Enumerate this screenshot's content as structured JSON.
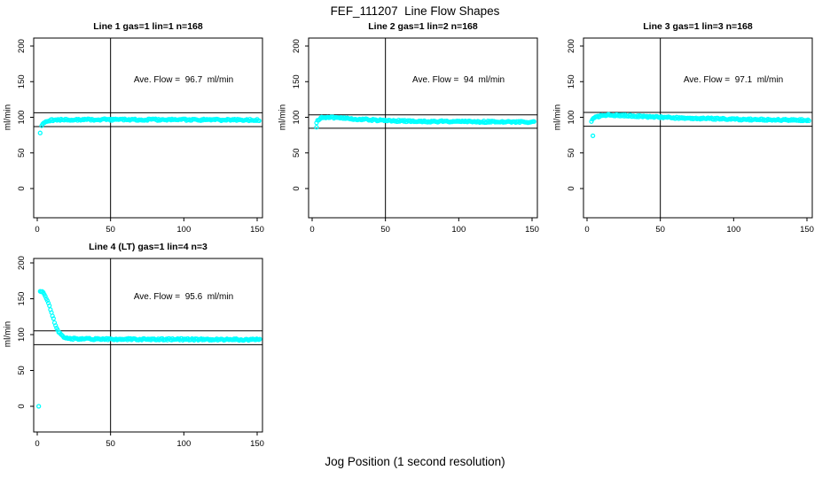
{
  "figure": {
    "title": "FEF_111207  Line Flow Shapes",
    "xlabel": "Jog Position (1 second resolution)",
    "ylabel": "ml/min",
    "point_color": "#00FFFF",
    "axis_color": "#000000",
    "background_color": "#FFFFFF"
  },
  "chart_data": [
    {
      "type": "scatter",
      "title": "Line 1 gas=1 lin=1 n=168",
      "annotation": "Ave. Flow =  96.7  ml/min",
      "ave_flow": 96.7,
      "n": 168,
      "xticks": [
        0,
        50,
        100,
        150
      ],
      "yticks": [
        0,
        50,
        100,
        150,
        200
      ],
      "xlim": [
        -3,
        154
      ],
      "ylim": [
        -40,
        210
      ],
      "vline_x": 50,
      "hlines": [
        106.4,
        87.0
      ],
      "outlier_points": [
        [
          2,
          78
        ]
      ],
      "band_points": [
        [
          3,
          88
        ],
        [
          4,
          91.5
        ],
        [
          5,
          93.5
        ],
        [
          6,
          94.5
        ],
        [
          8,
          95.5
        ],
        [
          10,
          96
        ],
        [
          15,
          96.5
        ],
        [
          25,
          96.7
        ],
        [
          50,
          96.8
        ],
        [
          75,
          96.7
        ],
        [
          100,
          96.6
        ],
        [
          125,
          96.4
        ],
        [
          152,
          96.2
        ]
      ]
    },
    {
      "type": "scatter",
      "title": "Line 2 gas=1 lin=2 n=168",
      "annotation": "Ave. Flow =  94  ml/min",
      "ave_flow": 94,
      "n": 168,
      "xticks": [
        0,
        50,
        100,
        150
      ],
      "yticks": [
        0,
        50,
        100,
        150,
        200
      ],
      "xlim": [
        -3,
        154
      ],
      "ylim": [
        -40,
        210
      ],
      "vline_x": 50,
      "hlines": [
        103.4,
        84.6
      ],
      "outlier_points": [
        [
          3,
          86
        ]
      ],
      "band_points": [
        [
          3,
          93
        ],
        [
          4,
          96
        ],
        [
          5,
          98
        ],
        [
          7,
          99.5
        ],
        [
          10,
          100
        ],
        [
          15,
          99.5
        ],
        [
          20,
          99
        ],
        [
          30,
          97.5
        ],
        [
          40,
          96.5
        ],
        [
          50,
          95.5
        ],
        [
          60,
          95
        ],
        [
          80,
          94.3
        ],
        [
          100,
          94
        ],
        [
          120,
          93.7
        ],
        [
          152,
          93.2
        ]
      ]
    },
    {
      "type": "scatter",
      "title": "Line 3 gas=1 lin=3 n=168",
      "annotation": "Ave. Flow =  97.1  ml/min",
      "ave_flow": 97.1,
      "n": 168,
      "xticks": [
        0,
        50,
        100,
        150
      ],
      "yticks": [
        0,
        50,
        100,
        150,
        200
      ],
      "xlim": [
        -3,
        154
      ],
      "ylim": [
        -40,
        210
      ],
      "vline_x": 50,
      "hlines": [
        106.8,
        87.4
      ],
      "outlier_points": [
        [
          4,
          74
        ]
      ],
      "band_points": [
        [
          3,
          95
        ],
        [
          4,
          98
        ],
        [
          6,
          100.5
        ],
        [
          9,
          102
        ],
        [
          13,
          103
        ],
        [
          20,
          102.8
        ],
        [
          30,
          102
        ],
        [
          40,
          101
        ],
        [
          50,
          100.2
        ],
        [
          60,
          99.3
        ],
        [
          80,
          98.2
        ],
        [
          100,
          97.3
        ],
        [
          120,
          96.6
        ],
        [
          140,
          96.2
        ],
        [
          152,
          96
        ]
      ]
    },
    {
      "type": "scatter",
      "title": "Line 4 (LT) gas=1 lin=4 n=3",
      "annotation": "Ave. Flow =  95.6  ml/min",
      "ave_flow": 95.6,
      "n": 3,
      "xticks": [
        0,
        50,
        100,
        150
      ],
      "yticks": [
        0,
        50,
        100,
        150,
        200
      ],
      "xlim": [
        -3,
        154
      ],
      "ylim": [
        -40,
        210
      ],
      "vline_x": 50,
      "hlines": [
        105.2,
        86.0
      ],
      "outlier_points": [
        [
          1,
          0
        ]
      ],
      "band_points": [
        [
          2,
          161
        ],
        [
          3,
          160.5
        ],
        [
          4,
          159
        ],
        [
          5,
          156
        ],
        [
          6,
          152
        ],
        [
          7,
          147
        ],
        [
          8,
          141
        ],
        [
          9,
          135
        ],
        [
          10,
          128.5
        ],
        [
          11,
          122
        ],
        [
          12,
          116
        ],
        [
          13,
          110.5
        ],
        [
          14,
          106
        ],
        [
          15,
          102.5
        ],
        [
          16,
          100
        ],
        [
          17,
          98
        ],
        [
          18,
          96.5
        ],
        [
          19,
          95.5
        ],
        [
          20,
          95
        ],
        [
          24,
          94.3
        ],
        [
          30,
          94
        ],
        [
          40,
          93.8
        ],
        [
          60,
          93.6
        ],
        [
          80,
          93.5
        ],
        [
          100,
          93.4
        ],
        [
          120,
          93.2
        ],
        [
          152,
          93
        ]
      ]
    }
  ]
}
